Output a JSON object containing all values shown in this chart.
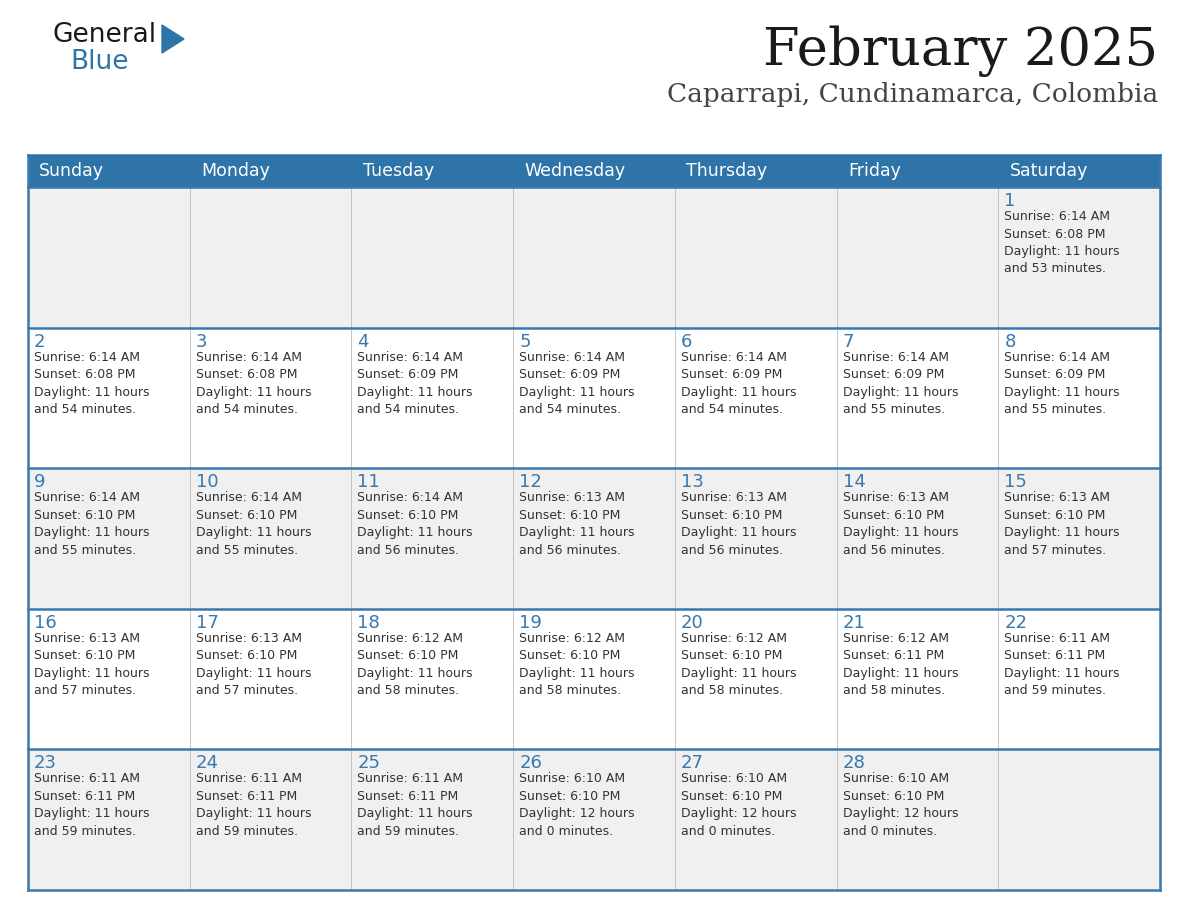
{
  "title": "February 2025",
  "subtitle": "Caparrapi, Cundinamarca, Colombia",
  "days_of_week": [
    "Sunday",
    "Monday",
    "Tuesday",
    "Wednesday",
    "Thursday",
    "Friday",
    "Saturday"
  ],
  "header_bg": "#2E74A8",
  "header_text": "#FFFFFF",
  "row_bg_odd": "#F0F0F0",
  "row_bg_even": "#FFFFFF",
  "cell_border": "#3A78AC",
  "day_num_color": "#3A78AC",
  "cell_text_color": "#333333",
  "title_color": "#1a1a1a",
  "subtitle_color": "#444444",
  "calendar": [
    [
      {
        "day": 0,
        "info": ""
      },
      {
        "day": 0,
        "info": ""
      },
      {
        "day": 0,
        "info": ""
      },
      {
        "day": 0,
        "info": ""
      },
      {
        "day": 0,
        "info": ""
      },
      {
        "day": 0,
        "info": ""
      },
      {
        "day": 1,
        "info": "Sunrise: 6:14 AM\nSunset: 6:08 PM\nDaylight: 11 hours\nand 53 minutes."
      }
    ],
    [
      {
        "day": 2,
        "info": "Sunrise: 6:14 AM\nSunset: 6:08 PM\nDaylight: 11 hours\nand 54 minutes."
      },
      {
        "day": 3,
        "info": "Sunrise: 6:14 AM\nSunset: 6:08 PM\nDaylight: 11 hours\nand 54 minutes."
      },
      {
        "day": 4,
        "info": "Sunrise: 6:14 AM\nSunset: 6:09 PM\nDaylight: 11 hours\nand 54 minutes."
      },
      {
        "day": 5,
        "info": "Sunrise: 6:14 AM\nSunset: 6:09 PM\nDaylight: 11 hours\nand 54 minutes."
      },
      {
        "day": 6,
        "info": "Sunrise: 6:14 AM\nSunset: 6:09 PM\nDaylight: 11 hours\nand 54 minutes."
      },
      {
        "day": 7,
        "info": "Sunrise: 6:14 AM\nSunset: 6:09 PM\nDaylight: 11 hours\nand 55 minutes."
      },
      {
        "day": 8,
        "info": "Sunrise: 6:14 AM\nSunset: 6:09 PM\nDaylight: 11 hours\nand 55 minutes."
      }
    ],
    [
      {
        "day": 9,
        "info": "Sunrise: 6:14 AM\nSunset: 6:10 PM\nDaylight: 11 hours\nand 55 minutes."
      },
      {
        "day": 10,
        "info": "Sunrise: 6:14 AM\nSunset: 6:10 PM\nDaylight: 11 hours\nand 55 minutes."
      },
      {
        "day": 11,
        "info": "Sunrise: 6:14 AM\nSunset: 6:10 PM\nDaylight: 11 hours\nand 56 minutes."
      },
      {
        "day": 12,
        "info": "Sunrise: 6:13 AM\nSunset: 6:10 PM\nDaylight: 11 hours\nand 56 minutes."
      },
      {
        "day": 13,
        "info": "Sunrise: 6:13 AM\nSunset: 6:10 PM\nDaylight: 11 hours\nand 56 minutes."
      },
      {
        "day": 14,
        "info": "Sunrise: 6:13 AM\nSunset: 6:10 PM\nDaylight: 11 hours\nand 56 minutes."
      },
      {
        "day": 15,
        "info": "Sunrise: 6:13 AM\nSunset: 6:10 PM\nDaylight: 11 hours\nand 57 minutes."
      }
    ],
    [
      {
        "day": 16,
        "info": "Sunrise: 6:13 AM\nSunset: 6:10 PM\nDaylight: 11 hours\nand 57 minutes."
      },
      {
        "day": 17,
        "info": "Sunrise: 6:13 AM\nSunset: 6:10 PM\nDaylight: 11 hours\nand 57 minutes."
      },
      {
        "day": 18,
        "info": "Sunrise: 6:12 AM\nSunset: 6:10 PM\nDaylight: 11 hours\nand 58 minutes."
      },
      {
        "day": 19,
        "info": "Sunrise: 6:12 AM\nSunset: 6:10 PM\nDaylight: 11 hours\nand 58 minutes."
      },
      {
        "day": 20,
        "info": "Sunrise: 6:12 AM\nSunset: 6:10 PM\nDaylight: 11 hours\nand 58 minutes."
      },
      {
        "day": 21,
        "info": "Sunrise: 6:12 AM\nSunset: 6:11 PM\nDaylight: 11 hours\nand 58 minutes."
      },
      {
        "day": 22,
        "info": "Sunrise: 6:11 AM\nSunset: 6:11 PM\nDaylight: 11 hours\nand 59 minutes."
      }
    ],
    [
      {
        "day": 23,
        "info": "Sunrise: 6:11 AM\nSunset: 6:11 PM\nDaylight: 11 hours\nand 59 minutes."
      },
      {
        "day": 24,
        "info": "Sunrise: 6:11 AM\nSunset: 6:11 PM\nDaylight: 11 hours\nand 59 minutes."
      },
      {
        "day": 25,
        "info": "Sunrise: 6:11 AM\nSunset: 6:11 PM\nDaylight: 11 hours\nand 59 minutes."
      },
      {
        "day": 26,
        "info": "Sunrise: 6:10 AM\nSunset: 6:10 PM\nDaylight: 12 hours\nand 0 minutes."
      },
      {
        "day": 27,
        "info": "Sunrise: 6:10 AM\nSunset: 6:10 PM\nDaylight: 12 hours\nand 0 minutes."
      },
      {
        "day": 28,
        "info": "Sunrise: 6:10 AM\nSunset: 6:10 PM\nDaylight: 12 hours\nand 0 minutes."
      },
      {
        "day": 0,
        "info": ""
      }
    ]
  ],
  "fig_width": 11.88,
  "fig_height": 9.18,
  "dpi": 100
}
